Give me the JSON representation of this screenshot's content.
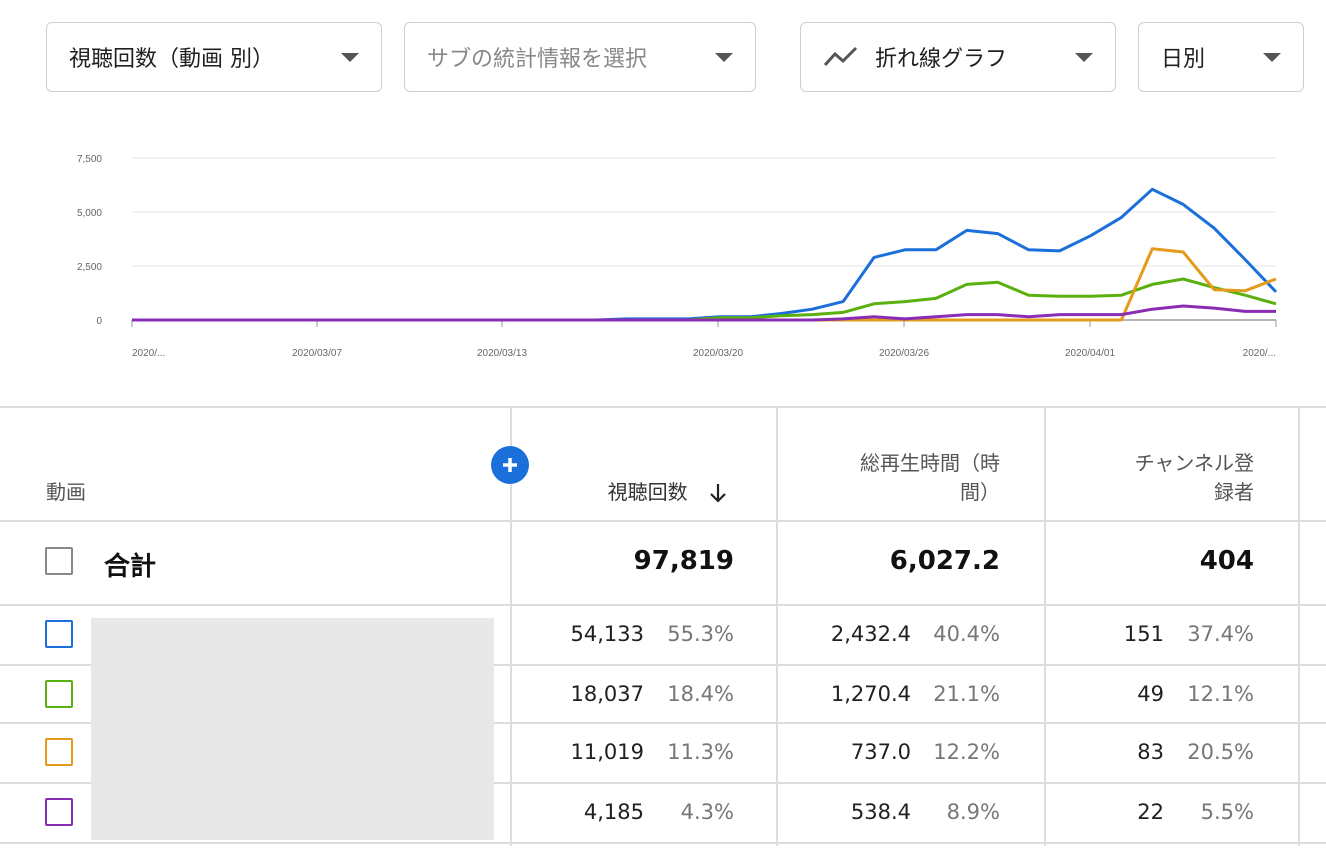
{
  "controls": {
    "metric_select": "視聴回数（動画 別）",
    "sub_metric_placeholder": "サブの統計情報を選択",
    "chart_type_select": "折れ線グラフ",
    "interval_select": "日別"
  },
  "chart_data": {
    "type": "line",
    "ylim": [
      0,
      7500
    ],
    "yticks": [
      "7,500",
      "5,000",
      "2,500",
      "0"
    ],
    "xtick_labels": [
      "2020/...",
      "2020/03/07",
      "2020/03/13",
      "2020/03/20",
      "2020/03/26",
      "2020/04/01",
      "2020/..."
    ],
    "grid": true,
    "series": [
      {
        "color": "#1a6fdb",
        "values": [
          0,
          0,
          0,
          0,
          0,
          0,
          0,
          0,
          0,
          0,
          0,
          0,
          0,
          0,
          0,
          0,
          50,
          50,
          50,
          150,
          150,
          300,
          500,
          850,
          2900,
          3250,
          3250,
          4150,
          4000,
          3250,
          3200,
          3900,
          4750,
          6050,
          5350,
          4250,
          2800,
          1300
        ]
      },
      {
        "color": "#5ab00f",
        "values": [
          0,
          0,
          0,
          0,
          0,
          0,
          0,
          0,
          0,
          0,
          0,
          0,
          0,
          0,
          0,
          0,
          0,
          0,
          0,
          100,
          100,
          200,
          250,
          350,
          750,
          850,
          1000,
          1650,
          1750,
          1150,
          1100,
          1100,
          1150,
          1650,
          1900,
          1500,
          1150,
          750
        ]
      },
      {
        "color": "#e49b1b",
        "values": [
          0,
          0,
          0,
          0,
          0,
          0,
          0,
          0,
          0,
          0,
          0,
          0,
          0,
          0,
          0,
          0,
          0,
          0,
          0,
          0,
          0,
          0,
          0,
          0,
          0,
          0,
          0,
          0,
          0,
          0,
          0,
          0,
          0,
          3300,
          3150,
          1400,
          1350,
          1900
        ]
      },
      {
        "color": "#8a2db5",
        "values": [
          0,
          0,
          0,
          0,
          0,
          0,
          0,
          0,
          0,
          0,
          0,
          0,
          0,
          0,
          0,
          0,
          0,
          0,
          0,
          0,
          0,
          0,
          0,
          50,
          150,
          50,
          150,
          250,
          250,
          150,
          250,
          250,
          250,
          500,
          650,
          550,
          400,
          400
        ]
      }
    ]
  },
  "table": {
    "col_video": "動画",
    "col_views": "視聴回数",
    "col_watch_time": "総再生時間（時間）",
    "col_watch_time_l1": "総再生時間（時",
    "col_watch_time_l2": "間）",
    "col_subs_l1": "チャンネル登",
    "col_subs_l2": "録者",
    "total_label": "合計",
    "total_views": "97,819",
    "total_watch": "6,027.2",
    "total_subs": "404",
    "rows": [
      {
        "color": "#1a6fdb",
        "views": "54,133",
        "views_pct": "55.3%",
        "watch": "2,432.4",
        "watch_pct": "40.4%",
        "subs": "151",
        "subs_pct": "37.4%"
      },
      {
        "color": "#5ab00f",
        "views": "18,037",
        "views_pct": "18.4%",
        "watch": "1,270.4",
        "watch_pct": "21.1%",
        "subs": "49",
        "subs_pct": "12.1%"
      },
      {
        "color": "#e49b1b",
        "views": "11,019",
        "views_pct": "11.3%",
        "watch": "737.0",
        "watch_pct": "12.2%",
        "subs": "83",
        "subs_pct": "20.5%"
      },
      {
        "color": "#8a2db5",
        "views": "4,185",
        "views_pct": "4.3%",
        "watch": "538.4",
        "watch_pct": "8.9%",
        "subs": "22",
        "subs_pct": "5.5%"
      }
    ]
  }
}
